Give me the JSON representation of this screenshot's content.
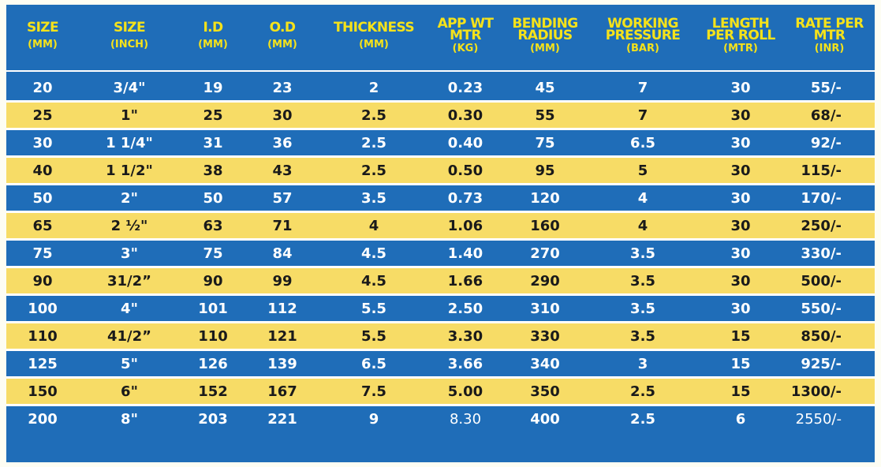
{
  "columns": [
    {
      "title": "SIZE",
      "unit": "(MM)"
    },
    {
      "title": "SIZE",
      "unit": "(INCH)"
    },
    {
      "title": "I.D",
      "unit": "(MM)"
    },
    {
      "title": "O.D",
      "unit": "(MM)"
    },
    {
      "title": "THICKNESS",
      "unit": "(MM)"
    },
    {
      "title": "APP WT MTR",
      "unit": "(KG)"
    },
    {
      "title": "BENDING RADIUS",
      "unit": "(MM)"
    },
    {
      "title": "WORKING PRESSURE",
      "unit": "(BAR)"
    },
    {
      "title": "LENGTH PER ROLL",
      "unit": "(MTR)"
    },
    {
      "title": "RATE PER MTR",
      "unit": "(INR)"
    }
  ],
  "rows": [
    [
      "20",
      "3/4\"",
      "19",
      "23",
      "2",
      "0.23",
      "45",
      "7",
      "30",
      "55/-"
    ],
    [
      "25",
      "1\"",
      "25",
      "30",
      "2.5",
      "0.30",
      "55",
      "7",
      "30",
      "68/-"
    ],
    [
      "30",
      "1 1/4\"",
      "31",
      "36",
      "2.5",
      "0.40",
      "75",
      "6.5",
      "30",
      "92/-"
    ],
    [
      "40",
      "1 1/2\"",
      "38",
      "43",
      "2.5",
      "0.50",
      "95",
      "5",
      "30",
      "115/-"
    ],
    [
      "50",
      "2\"",
      "50",
      "57",
      "3.5",
      "0.73",
      "120",
      "4",
      "30",
      "170/-"
    ],
    [
      "65",
      "2 ½\"",
      "63",
      "71",
      "4",
      "1.06",
      "160",
      "4",
      "30",
      "250/-"
    ],
    [
      "75",
      "3\"",
      "75",
      "84",
      "4.5",
      "1.40",
      "270",
      "3.5",
      "30",
      "330/-"
    ],
    [
      "90",
      "31/2”",
      "90",
      "99",
      "4.5",
      "1.66",
      "290",
      "3.5",
      "30",
      "500/-"
    ],
    [
      "100",
      "4\"",
      "101",
      "112",
      "5.5",
      "2.50",
      "310",
      "3.5",
      "30",
      "550/-"
    ],
    [
      "110",
      "41/2”",
      "110",
      "121",
      "5.5",
      "3.30",
      "330",
      "3.5",
      "15",
      "850/-"
    ],
    [
      "125",
      "5\"",
      "126",
      "139",
      "6.5",
      "3.66",
      "340",
      "3",
      "15",
      "925/-"
    ],
    [
      "150",
      "6\"",
      "152",
      "167",
      "7.5",
      "5.00",
      "350",
      "2.5",
      "15",
      "1300/-"
    ],
    [
      "200",
      "8\"",
      "203",
      "221",
      "9",
      "8.30",
      "400",
      "2.5",
      "6",
      "2550/-"
    ]
  ],
  "colors": {
    "blue": "#1f6db8",
    "yellow": "#f7dc66",
    "header_text": "#f5e21a"
  }
}
